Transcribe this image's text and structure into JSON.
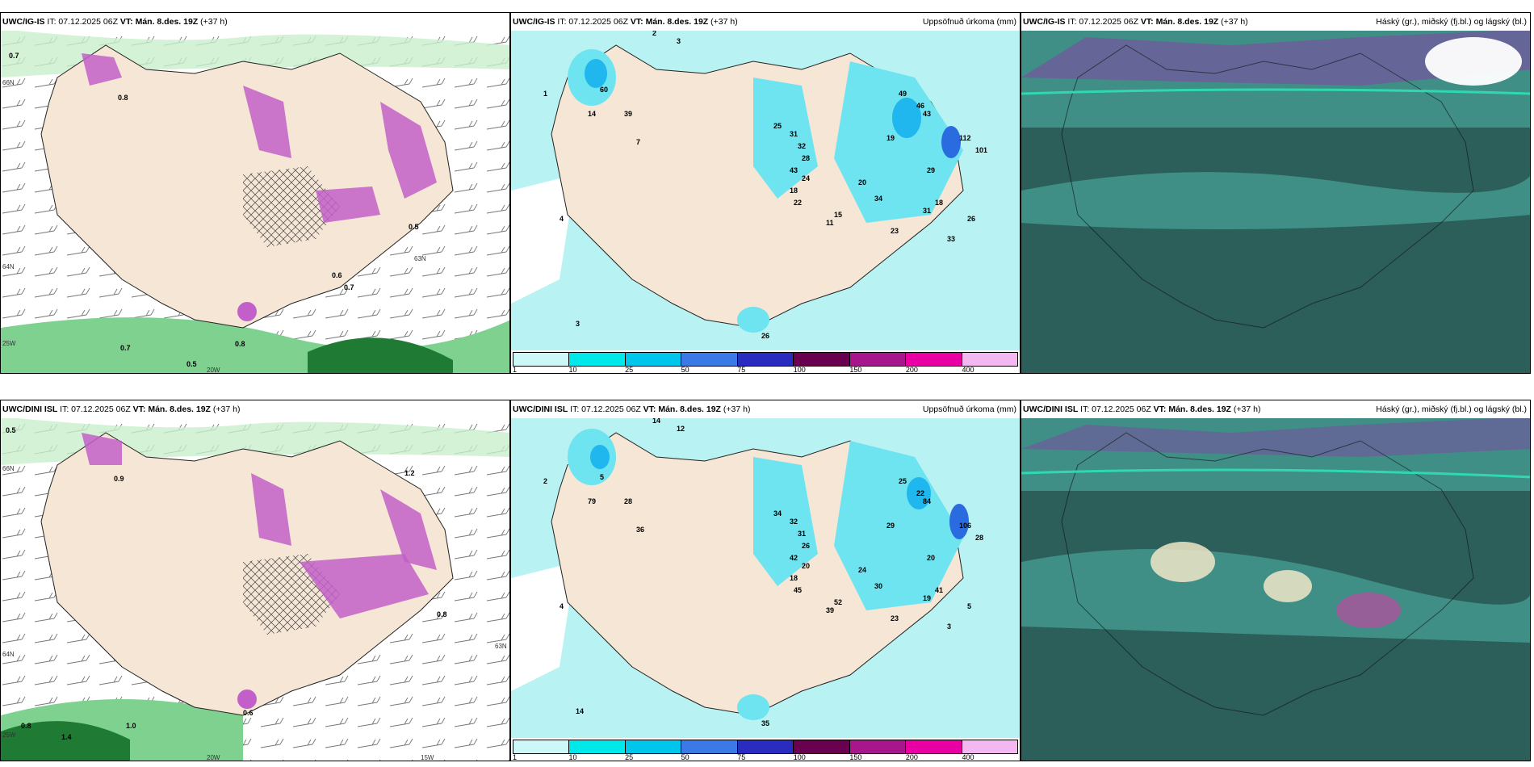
{
  "colors": {
    "land": "#f5e6d6",
    "precip_light": "#b8f2f2",
    "wind_green": "#9fdfa8",
    "snow_purple": "#c25fc8",
    "cloud_teal": "#3f8f87",
    "cloud_dark": "#2c5e5a"
  },
  "scale": {
    "ticks": [
      "1",
      "10",
      "25",
      "50",
      "75",
      "100",
      "150",
      "200",
      "400"
    ],
    "colors": [
      "#cdf8f8",
      "#00e8ea",
      "#00c6ec",
      "#3a7ae6",
      "#2a2cc0",
      "#6a0050",
      "#a8168c",
      "#e800a4",
      "#f4b8f0"
    ]
  },
  "rows": [
    {
      "model": "UWC/IG-IS",
      "it": "IT: 07.12.2025 06Z",
      "vt_label": "VT:",
      "vt": "Mán. 8.des. 19Z",
      "lead": "(+37 h)",
      "precip_title": "Uppsöfnuð úrkoma (mm)",
      "cloud_title": "Háský (gr.), miðský (fj.bl.) og lágský (bl.)",
      "axis_lat": [
        "66N",
        "64N",
        "63N"
      ],
      "axis_lon": [
        "25W",
        "20W"
      ],
      "wind_labels": [
        "0.7",
        "0.5",
        "0.8",
        "0.7",
        "0.5",
        "0.7",
        "0.6",
        "0.8"
      ],
      "precip_values": [
        "1",
        "2",
        "3",
        "14",
        "39",
        "60",
        "7",
        "25",
        "31",
        "32",
        "28",
        "43",
        "24",
        "18",
        "22",
        "15",
        "11",
        "49",
        "46",
        "43",
        "19",
        "112",
        "101",
        "29",
        "34",
        "20",
        "31",
        "23",
        "18",
        "33",
        "26",
        "4",
        "3",
        "26"
      ]
    },
    {
      "model": "UWC/DINI ISL",
      "it": "IT: 07.12.2025 06Z",
      "vt_label": "VT:",
      "vt": "Mán. 8.des. 19Z",
      "lead": "(+37 h)",
      "precip_title": "Uppsöfnuð úrkoma (mm)",
      "cloud_title": "Háský (gr.), miðský (fj.bl.) og lágský (bl.)",
      "axis_lat": [
        "66N",
        "64N",
        "63N"
      ],
      "axis_lon": [
        "25W",
        "20W",
        "15W"
      ],
      "wind_labels": [
        "0.5",
        "0.9",
        "0.8",
        "1.4",
        "1.0",
        "1.2",
        "0.8",
        "0.6"
      ],
      "precip_values": [
        "2",
        "14",
        "12",
        "79",
        "28",
        "5",
        "36",
        "34",
        "32",
        "31",
        "26",
        "42",
        "20",
        "18",
        "45",
        "52",
        "39",
        "25",
        "22",
        "84",
        "29",
        "106",
        "28",
        "20",
        "30",
        "24",
        "19",
        "23",
        "41",
        "3",
        "5",
        "4",
        "14",
        "35"
      ]
    }
  ]
}
